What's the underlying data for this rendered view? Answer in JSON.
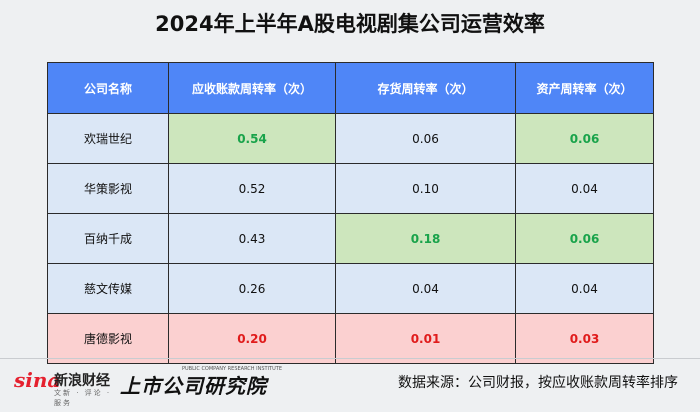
{
  "title": "2024年上半年A股电视剧集公司运营效率",
  "table": {
    "headers": [
      "公司名称",
      "应收账款周转率（次）",
      "存货周转率（次）",
      "资产周转率（次）"
    ],
    "rows": [
      {
        "company": "欢瑞世纪",
        "receivable": "0.54",
        "inventory": "0.06",
        "asset": "0.06"
      },
      {
        "company": "华策影视",
        "receivable": "0.52",
        "inventory": "0.10",
        "asset": "0.04"
      },
      {
        "company": "百纳千成",
        "receivable": "0.43",
        "inventory": "0.18",
        "asset": "0.06"
      },
      {
        "company": "慈文传媒",
        "receivable": "0.26",
        "inventory": "0.04",
        "asset": "0.04"
      },
      {
        "company": "唐德影视",
        "receivable": "0.20",
        "inventory": "0.01",
        "asset": "0.03"
      }
    ]
  },
  "colors": {
    "header_bg": "#4f86f7",
    "cell_bg": "#dbe7f6",
    "highlight_green_bg": "#cde6bd",
    "highlight_green_text": "#19a34a",
    "highlight_red_bg": "#fbd0d0",
    "highlight_red_text": "#e01b1b"
  },
  "footer": {
    "sina_mark": "sina",
    "sina_name": "新浪财经",
    "sina_sub": "文新 · 评论 · 服务",
    "institute_name": "上市公司研究院",
    "institute_en": "PUBLIC COMPANY RESEARCH INSTITUTE",
    "source": "数据来源：公司财报，按应收账款周转率排序"
  }
}
